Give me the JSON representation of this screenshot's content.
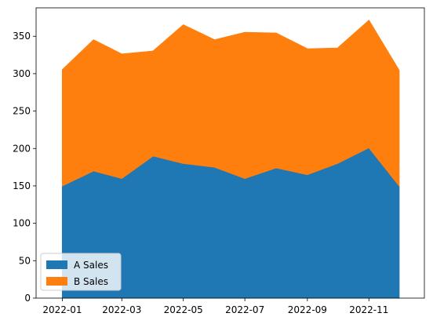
{
  "chart_data": {
    "type": "area",
    "stacked": true,
    "x": [
      "2022-01-01",
      "2022-02-01",
      "2022-03-01",
      "2022-04-01",
      "2022-05-01",
      "2022-06-01",
      "2022-07-01",
      "2022-08-01",
      "2022-09-01",
      "2022-10-01",
      "2022-11-01",
      "2022-12-01"
    ],
    "series": [
      {
        "name": "A Sales",
        "color": "#1f77b4",
        "values": [
          150,
          170,
          160,
          190,
          180,
          175,
          160,
          174,
          165,
          180,
          201,
          150
        ]
      },
      {
        "name": "B Sales",
        "color": "#ff7f0e",
        "values": [
          155,
          175,
          166,
          140,
          185,
          170,
          195,
          180,
          168,
          154,
          170,
          154
        ]
      }
    ],
    "xticks": [
      "2022-01",
      "2022-03",
      "2022-05",
      "2022-07",
      "2022-09",
      "2022-11"
    ],
    "yticks": [
      0,
      50,
      100,
      150,
      200,
      250,
      300,
      350
    ],
    "ylim": [
      0,
      388
    ],
    "xlim": [
      "2021-12-06",
      "2022-12-26"
    ],
    "grid": false,
    "legend_position": "lower-left",
    "title": "",
    "xlabel": "",
    "ylabel": ""
  }
}
